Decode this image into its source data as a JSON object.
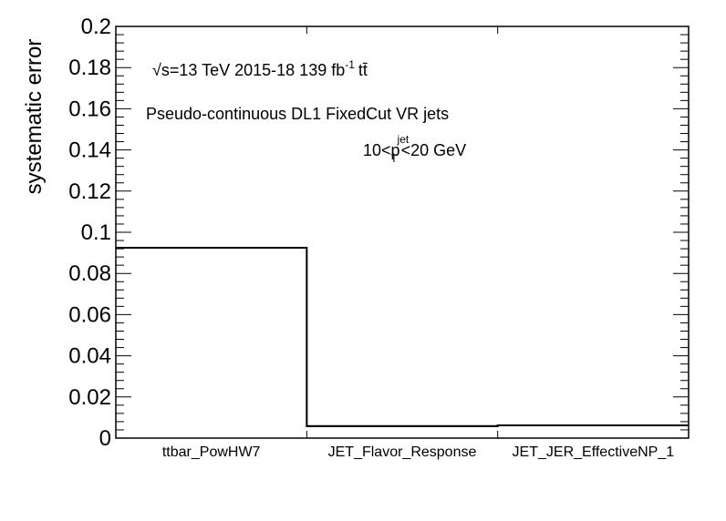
{
  "chart_data": {
    "type": "bar",
    "style": "step-histogram",
    "categories": [
      "ttbar_PowHW7",
      "JET_Flavor_Response",
      "JET_JER_EffectiveNP_1"
    ],
    "values": [
      0.0925,
      0.0058,
      0.0062
    ],
    "ylabel": "systematic error",
    "xlabel": "",
    "ylim": [
      0,
      0.2
    ],
    "yticks": [
      0,
      0.02,
      0.04,
      0.06,
      0.08,
      0.1,
      0.12,
      0.14,
      0.16,
      0.18,
      0.2
    ],
    "ytick_labels": [
      "0",
      "0.02",
      "0.04",
      "0.06",
      "0.08",
      "0.1",
      "0.12",
      "0.14",
      "0.16",
      "0.18",
      "0.2"
    ],
    "grid": false,
    "line_color": "#000000"
  },
  "annotations": {
    "energy_sqrt": "√s",
    "energy_rest": "=13 TeV  2015-18  139 fb",
    "lumi_exp": "-1",
    "process": "tt̄",
    "tagger": "Pseudo-continuous DL1 FixedCut VR jets",
    "pt_low": "10<p",
    "pt_sup": "jet",
    "pt_sub": "T",
    "pt_high": "<20 GeV"
  }
}
